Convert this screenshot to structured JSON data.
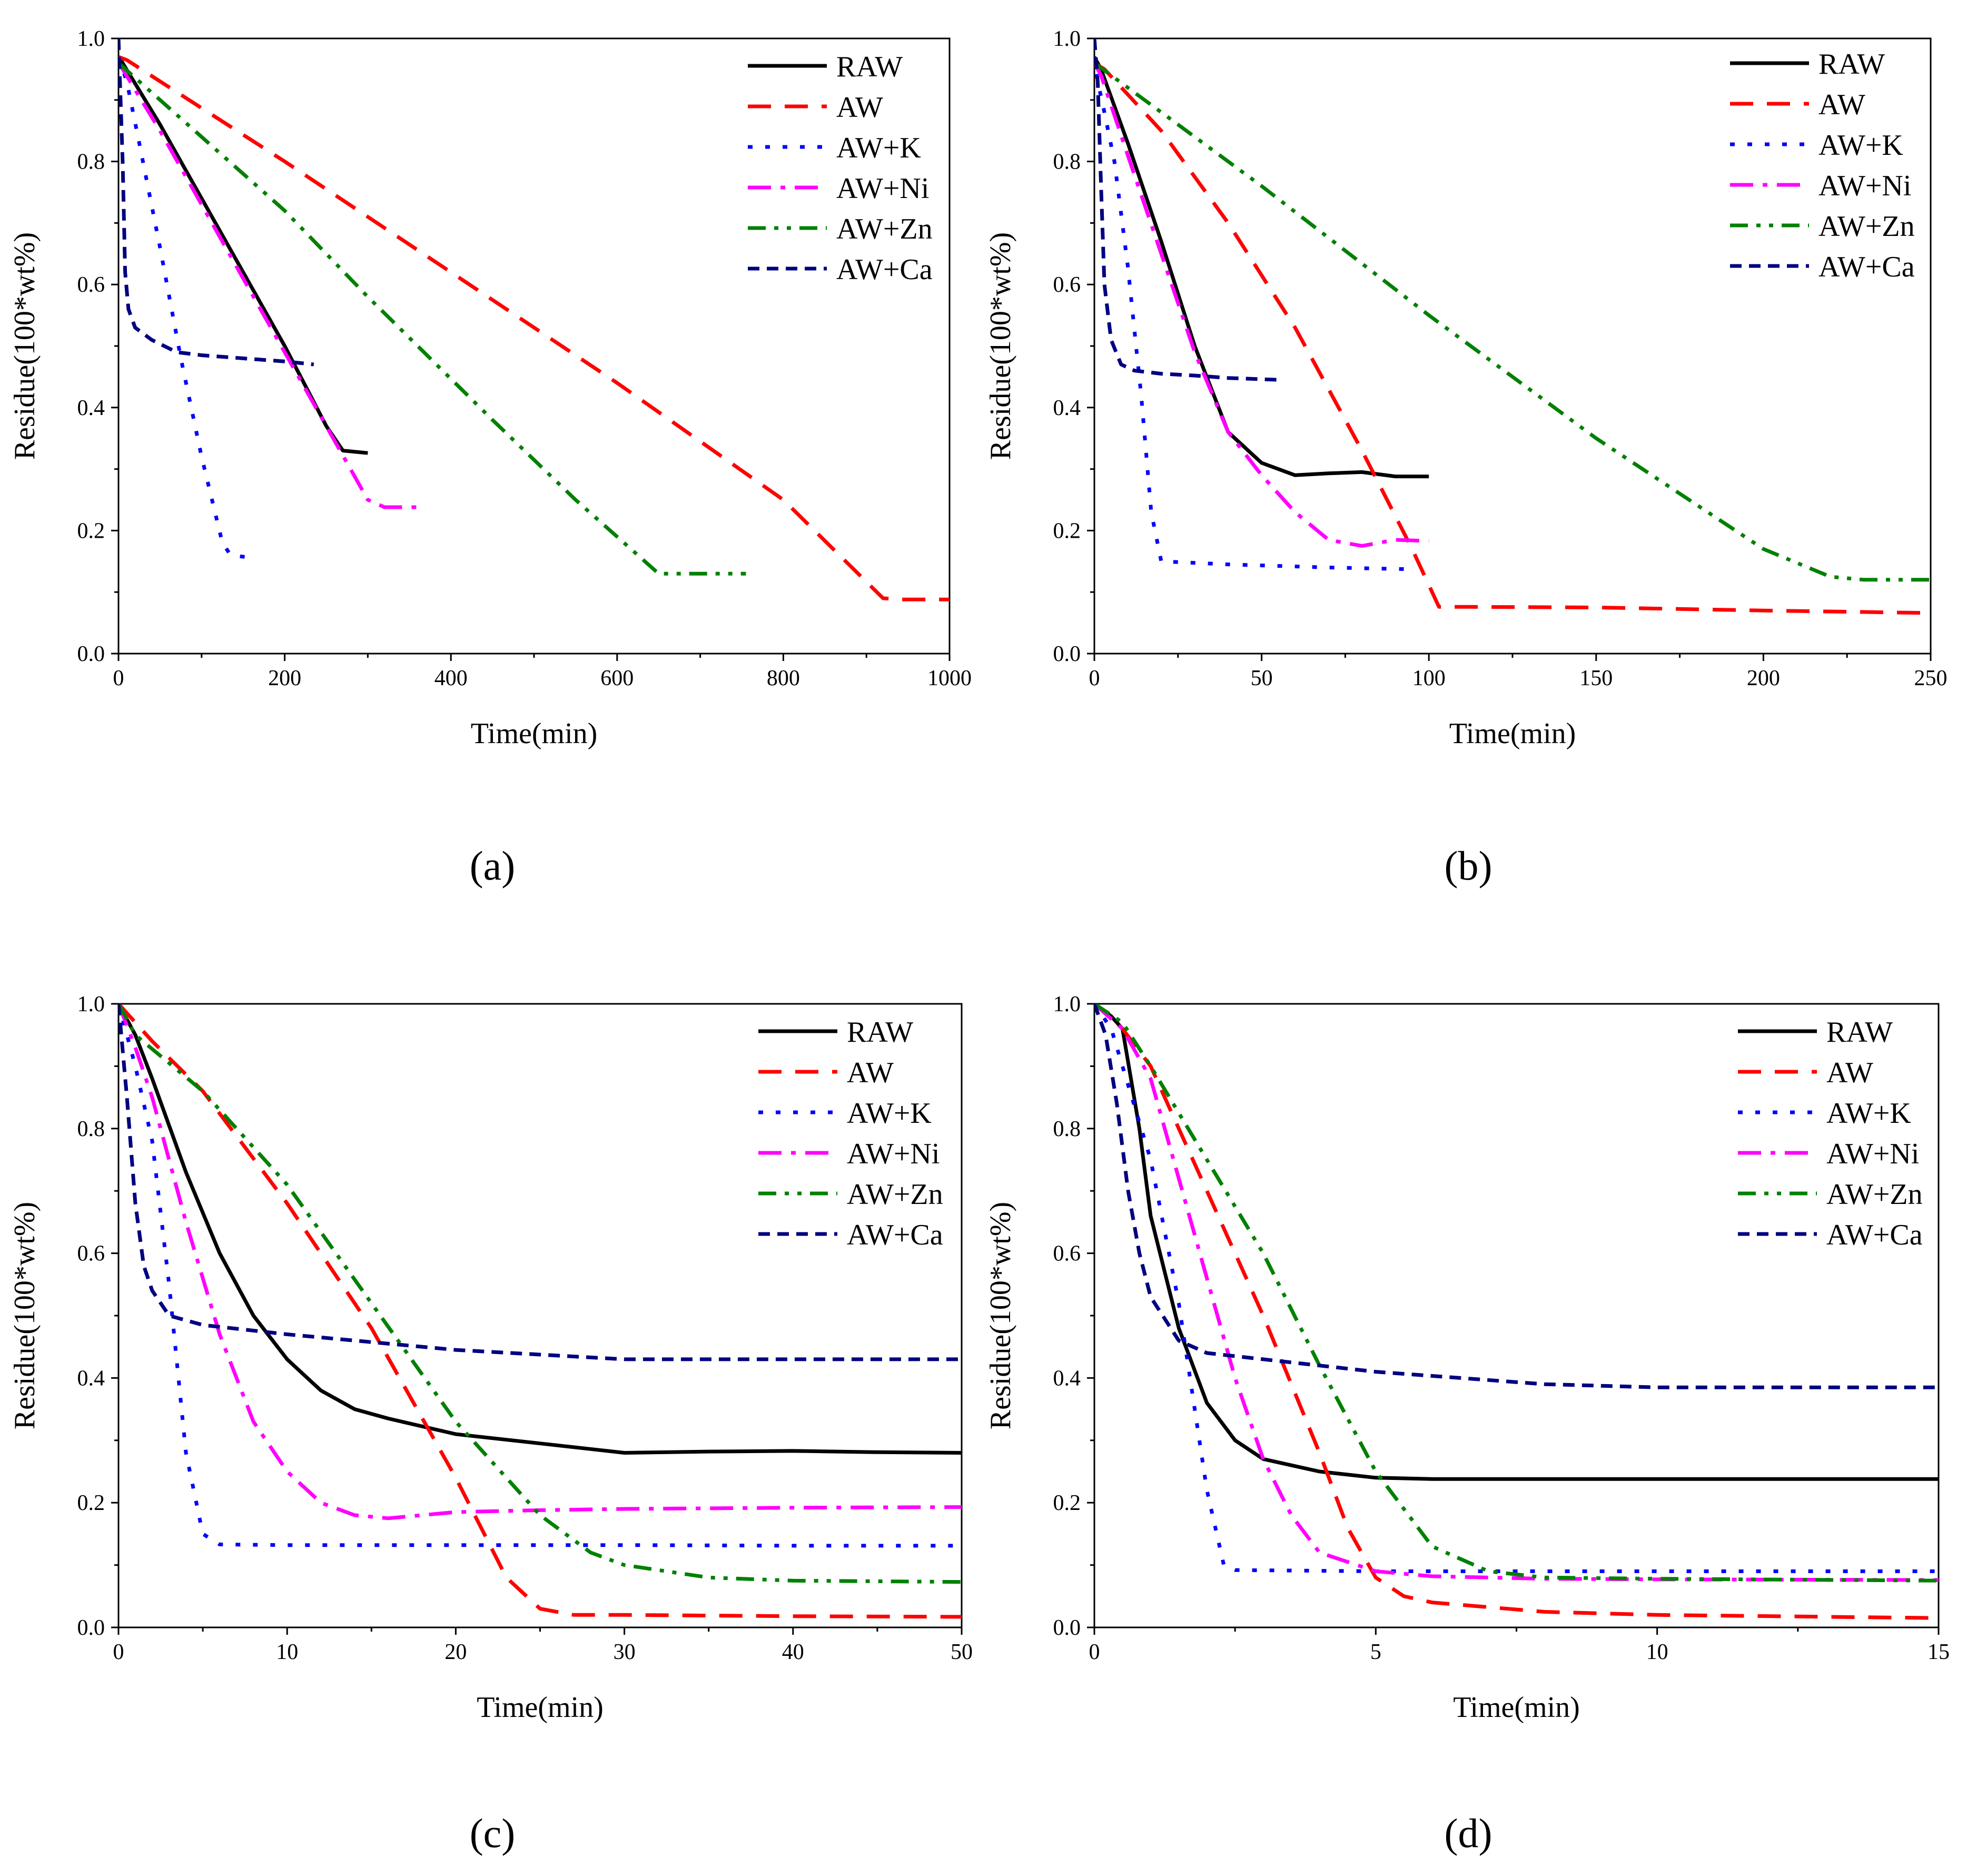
{
  "figure": {
    "series_styles": [
      {
        "name": "RAW",
        "color": "#000000",
        "dash": "solid"
      },
      {
        "name": "AW",
        "color": "#ff0000",
        "dash": "dash"
      },
      {
        "name": "AW+K",
        "color": "#0000ff",
        "dash": "dot"
      },
      {
        "name": "AW+Ni",
        "color": "#ff00ff",
        "dash": "dashdot"
      },
      {
        "name": "AW+Zn",
        "color": "#008000",
        "dash": "dashdotdot"
      },
      {
        "name": "AW+Ca",
        "color": "#000080",
        "dash": "shortdash"
      }
    ]
  },
  "chart_data": [
    {
      "panel": "(a)",
      "type": "line",
      "xlabel": "Time(min)",
      "ylabel": "Residue(100*wt%)",
      "xlim": [
        0,
        1000
      ],
      "ylim": [
        0,
        1.0
      ],
      "xticks": [
        "0",
        "200",
        "400",
        "600",
        "800",
        "1000"
      ],
      "yticks": [
        "0.0",
        "0.2",
        "0.4",
        "0.6",
        "0.8",
        "1.0"
      ],
      "legend": [
        "RAW",
        "AW",
        "AW+K",
        "AW+Ni",
        "AW+Zn",
        "AW+Ca"
      ],
      "legend_position": "top-right",
      "series": [
        {
          "name": "RAW",
          "x": [
            0,
            5,
            50,
            100,
            150,
            200,
            250,
            270,
            285,
            300
          ],
          "y": [
            0.97,
            0.96,
            0.86,
            0.74,
            0.62,
            0.5,
            0.37,
            0.33,
            0.328,
            0.326
          ]
        },
        {
          "name": "AW",
          "x": [
            0,
            10,
            200,
            400,
            600,
            800,
            920,
            940,
            1000
          ],
          "y": [
            0.97,
            0.965,
            0.8,
            0.62,
            0.44,
            0.25,
            0.09,
            0.088,
            0.088
          ]
        },
        {
          "name": "AW+K",
          "x": [
            0,
            10,
            25,
            50,
            75,
            100,
            125,
            135,
            165
          ],
          "y": [
            0.97,
            0.93,
            0.83,
            0.66,
            0.48,
            0.32,
            0.18,
            0.16,
            0.155
          ]
        },
        {
          "name": "AW+Ni",
          "x": [
            0,
            5,
            50,
            100,
            150,
            200,
            250,
            300,
            320,
            360
          ],
          "y": [
            0.96,
            0.95,
            0.85,
            0.73,
            0.61,
            0.49,
            0.37,
            0.25,
            0.238,
            0.238
          ]
        },
        {
          "name": "AW+Zn",
          "x": [
            0,
            100,
            200,
            300,
            360,
            450,
            550,
            650,
            670,
            755
          ],
          "y": [
            0.96,
            0.84,
            0.72,
            0.58,
            0.5,
            0.38,
            0.25,
            0.13,
            0.13,
            0.13
          ]
        },
        {
          "name": "AW+Ca",
          "x": [
            0,
            5,
            8,
            12,
            20,
            40,
            70,
            100,
            150,
            200,
            235
          ],
          "y": [
            1.0,
            0.8,
            0.62,
            0.56,
            0.53,
            0.51,
            0.49,
            0.485,
            0.48,
            0.475,
            0.47
          ]
        }
      ]
    },
    {
      "panel": "(b)",
      "type": "line",
      "xlabel": "Time(min)",
      "ylabel": "Residue(100*wt%)",
      "xlim": [
        0,
        250
      ],
      "ylim": [
        0,
        1.0
      ],
      "xticks": [
        "0",
        "50",
        "100",
        "150",
        "200",
        "250"
      ],
      "yticks": [
        "0.0",
        "0.2",
        "0.4",
        "0.6",
        "0.8",
        "1.0"
      ],
      "legend": [
        "RAW",
        "AW",
        "AW+K",
        "AW+Ni",
        "AW+Zn",
        "AW+Ca"
      ],
      "legend_position": "top-right",
      "series": [
        {
          "name": "RAW",
          "x": [
            0,
            2,
            10,
            20,
            30,
            40,
            50,
            60,
            70,
            80,
            90,
            100
          ],
          "y": [
            0.97,
            0.95,
            0.83,
            0.67,
            0.5,
            0.36,
            0.31,
            0.29,
            0.293,
            0.295,
            0.288,
            0.288
          ]
        },
        {
          "name": "AW",
          "x": [
            0,
            3,
            20,
            40,
            60,
            80,
            95,
            103,
            110,
            150,
            200,
            250
          ],
          "y": [
            0.96,
            0.95,
            0.85,
            0.7,
            0.53,
            0.33,
            0.17,
            0.076,
            0.076,
            0.075,
            0.07,
            0.066
          ]
        },
        {
          "name": "AW+K",
          "x": [
            0,
            1,
            3,
            6,
            10,
            14,
            17,
            20,
            40,
            70,
            96
          ],
          "y": [
            0.97,
            0.93,
            0.88,
            0.8,
            0.63,
            0.42,
            0.23,
            0.15,
            0.145,
            0.14,
            0.137
          ]
        },
        {
          "name": "AW+Ni",
          "x": [
            0,
            2,
            10,
            20,
            30,
            40,
            50,
            60,
            70,
            80,
            90,
            100
          ],
          "y": [
            0.96,
            0.94,
            0.81,
            0.65,
            0.49,
            0.36,
            0.29,
            0.23,
            0.185,
            0.175,
            0.185,
            0.183
          ]
        },
        {
          "name": "AW+Zn",
          "x": [
            0,
            5,
            50,
            100,
            150,
            200,
            220,
            230,
            250
          ],
          "y": [
            0.96,
            0.94,
            0.76,
            0.55,
            0.35,
            0.17,
            0.125,
            0.12,
            0.12
          ]
        },
        {
          "name": "AW+Ca",
          "x": [
            0,
            1,
            2,
            3,
            5,
            8,
            12,
            20,
            30,
            40,
            55
          ],
          "y": [
            1.0,
            0.93,
            0.76,
            0.6,
            0.51,
            0.47,
            0.46,
            0.455,
            0.452,
            0.448,
            0.445
          ]
        }
      ]
    },
    {
      "panel": "(c)",
      "type": "line",
      "xlabel": "Time(min)",
      "ylabel": "Residue(100*wt%)",
      "xlim": [
        0,
        50
      ],
      "ylim": [
        0,
        1.0
      ],
      "xticks": [
        "0",
        "10",
        "20",
        "30",
        "40",
        "50"
      ],
      "yticks": [
        "0.0",
        "0.2",
        "0.4",
        "0.6",
        "0.8",
        "1.0"
      ],
      "legend": [
        "RAW",
        "AW",
        "AW+K",
        "AW+Ni",
        "AW+Zn",
        "AW+Ca"
      ],
      "legend_position": "top-right",
      "series": [
        {
          "name": "RAW",
          "x": [
            0,
            1,
            2,
            4,
            6,
            8,
            10,
            12,
            14,
            16,
            20,
            25,
            30,
            35,
            40,
            45,
            50
          ],
          "y": [
            1.0,
            0.95,
            0.88,
            0.73,
            0.6,
            0.5,
            0.43,
            0.38,
            0.35,
            0.335,
            0.31,
            0.295,
            0.28,
            0.282,
            0.283,
            0.281,
            0.28
          ]
        },
        {
          "name": "AW",
          "x": [
            0,
            2,
            5,
            10,
            15,
            20,
            23,
            25,
            27,
            30,
            40,
            50
          ],
          "y": [
            1.0,
            0.94,
            0.86,
            0.68,
            0.48,
            0.24,
            0.08,
            0.03,
            0.02,
            0.02,
            0.018,
            0.017
          ]
        },
        {
          "name": "AW+K",
          "x": [
            0,
            0.5,
            1,
            2,
            3,
            4,
            5,
            6,
            10,
            20,
            30,
            40,
            50
          ],
          "y": [
            1.0,
            0.95,
            0.9,
            0.78,
            0.55,
            0.28,
            0.15,
            0.133,
            0.132,
            0.132,
            0.132,
            0.131,
            0.131
          ]
        },
        {
          "name": "AW+Ni",
          "x": [
            0,
            1,
            2,
            4,
            6,
            8,
            10,
            12,
            14,
            16,
            18,
            20,
            25,
            30,
            40,
            50
          ],
          "y": [
            1.0,
            0.93,
            0.85,
            0.65,
            0.47,
            0.33,
            0.25,
            0.2,
            0.18,
            0.175,
            0.18,
            0.185,
            0.188,
            0.19,
            0.192,
            0.193
          ]
        },
        {
          "name": "AW+Zn",
          "x": [
            0,
            1,
            5,
            10,
            15,
            20,
            25,
            28,
            30,
            35,
            40,
            50
          ],
          "y": [
            1.0,
            0.95,
            0.86,
            0.71,
            0.52,
            0.33,
            0.18,
            0.12,
            0.1,
            0.08,
            0.075,
            0.073
          ]
        },
        {
          "name": "AW+Ca",
          "x": [
            0,
            0.5,
            1,
            1.5,
            2,
            3,
            5,
            10,
            20,
            30,
            40,
            50
          ],
          "y": [
            1.0,
            0.85,
            0.68,
            0.58,
            0.54,
            0.5,
            0.485,
            0.47,
            0.445,
            0.43,
            0.43,
            0.43
          ]
        }
      ]
    },
    {
      "panel": "(d)",
      "type": "line",
      "xlabel": "Time(min)",
      "ylabel": "Residue(100*wt%)",
      "xlim": [
        0,
        15
      ],
      "ylim": [
        0,
        1.0
      ],
      "xticks": [
        "0",
        "5",
        "10",
        "15"
      ],
      "yticks": [
        "0.0",
        "0.2",
        "0.4",
        "0.6",
        "0.8",
        "1.0"
      ],
      "legend": [
        "RAW",
        "AW",
        "AW+K",
        "AW+Ni",
        "AW+Zn",
        "AW+Ca"
      ],
      "legend_position": "top-right",
      "series": [
        {
          "name": "RAW",
          "x": [
            0,
            0.3,
            0.5,
            0.8,
            1.0,
            1.5,
            2.0,
            2.5,
            3.0,
            4.0,
            5.0,
            6.0,
            8.0,
            10.0,
            15.0
          ],
          "y": [
            1.0,
            0.98,
            0.96,
            0.8,
            0.66,
            0.48,
            0.36,
            0.3,
            0.27,
            0.25,
            0.24,
            0.238,
            0.238,
            0.238,
            0.238
          ]
        },
        {
          "name": "AW",
          "x": [
            0,
            0.5,
            1.0,
            2.0,
            3.0,
            4.0,
            4.5,
            5.0,
            5.5,
            6.0,
            8.0,
            10.0,
            15.0
          ],
          "y": [
            1.0,
            0.96,
            0.9,
            0.7,
            0.5,
            0.28,
            0.16,
            0.08,
            0.05,
            0.04,
            0.025,
            0.02,
            0.015
          ]
        },
        {
          "name": "AW+K",
          "x": [
            0,
            0.3,
            0.5,
            1.0,
            1.5,
            2.0,
            2.3,
            2.5,
            5.0,
            10.0,
            15.0
          ],
          "y": [
            1.0,
            0.96,
            0.9,
            0.75,
            0.52,
            0.22,
            0.1,
            0.092,
            0.09,
            0.09,
            0.09
          ]
        },
        {
          "name": "AW+Ni",
          "x": [
            0,
            0.5,
            1.0,
            1.5,
            2.0,
            2.5,
            3.0,
            3.5,
            4.0,
            5.0,
            6.0,
            8.0,
            10.0,
            15.0
          ],
          "y": [
            1.0,
            0.96,
            0.88,
            0.72,
            0.56,
            0.4,
            0.27,
            0.18,
            0.12,
            0.09,
            0.082,
            0.078,
            0.077,
            0.076
          ]
        },
        {
          "name": "AW+Zn",
          "x": [
            0,
            0.5,
            1.0,
            2.0,
            3.0,
            4.0,
            5.0,
            6.0,
            7.0,
            8.0,
            10.0,
            15.0
          ],
          "y": [
            1.0,
            0.97,
            0.9,
            0.75,
            0.6,
            0.42,
            0.25,
            0.13,
            0.09,
            0.08,
            0.078,
            0.075
          ]
        },
        {
          "name": "AW+Ca",
          "x": [
            0,
            0.2,
            0.4,
            0.6,
            0.8,
            1.0,
            1.5,
            2.0,
            3.0,
            5.0,
            8.0,
            10.0,
            12.0,
            15.0
          ],
          "y": [
            1.0,
            0.95,
            0.84,
            0.7,
            0.6,
            0.53,
            0.46,
            0.44,
            0.43,
            0.41,
            0.39,
            0.385,
            0.385,
            0.385
          ]
        }
      ]
    }
  ]
}
